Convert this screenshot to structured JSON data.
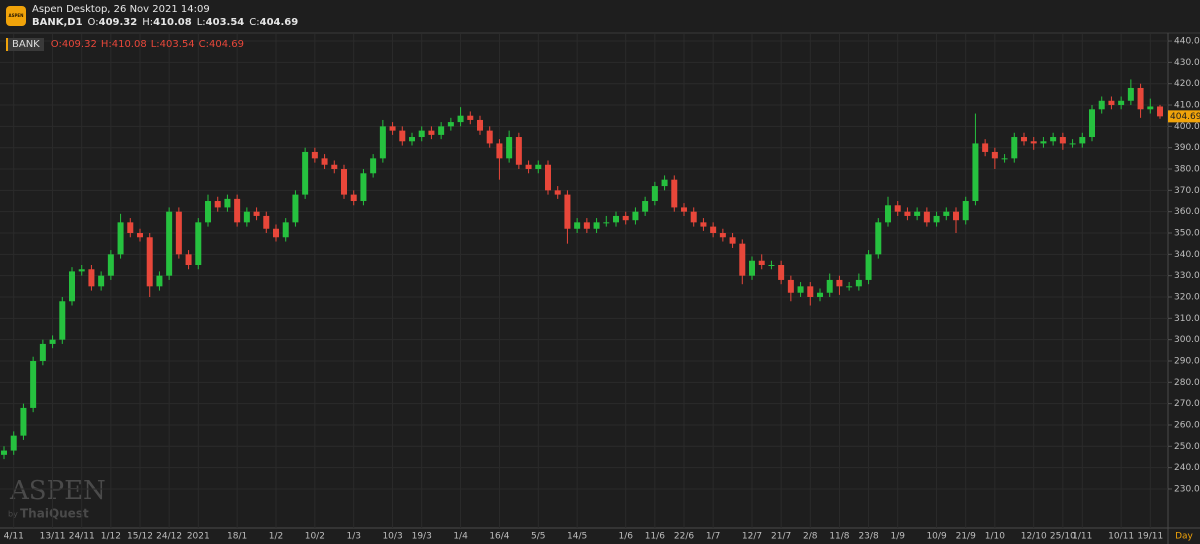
{
  "header": {
    "app_title": "Aspen Desktop, 26 Nov 2021 14:09",
    "symbol_interval": "BANK,D1",
    "ohlc_prefixes": [
      "O:",
      "H:",
      "L:",
      "C:"
    ],
    "logo_text": "ASPEN"
  },
  "watermark": {
    "brand": "ASPEN",
    "by": "by",
    "company": "ThaiQuest"
  },
  "chart_data": {
    "type": "candlestick",
    "symbol": "BANK",
    "x_unit": "Day",
    "up_color": "#26c13f",
    "down_color": "#e8473a",
    "grid": true,
    "categories": [
      null,
      "4/11",
      null,
      null,
      null,
      "13/11",
      null,
      null,
      "24/11",
      null,
      null,
      "1/12",
      null,
      null,
      "15/12",
      null,
      null,
      "24/12",
      null,
      null,
      "2021",
      null,
      null,
      null,
      "18/1",
      null,
      null,
      null,
      "1/2",
      null,
      null,
      null,
      "10/2",
      null,
      null,
      null,
      "1/3",
      null,
      null,
      null,
      "10/3",
      null,
      null,
      "19/3",
      null,
      null,
      null,
      "1/4",
      null,
      null,
      null,
      "16/4",
      null,
      null,
      null,
      "5/5",
      null,
      null,
      null,
      "14/5",
      null,
      null,
      null,
      null,
      "1/6",
      null,
      null,
      "11/6",
      null,
      null,
      "22/6",
      null,
      null,
      "1/7",
      null,
      null,
      null,
      "12/7",
      null,
      null,
      "21/7",
      null,
      null,
      "2/8",
      null,
      null,
      "11/8",
      null,
      null,
      "23/8",
      null,
      null,
      "1/9",
      null,
      null,
      null,
      "10/9",
      null,
      null,
      "21/9",
      null,
      null,
      "1/10",
      null,
      null,
      null,
      "12/10",
      null,
      null,
      "25/10",
      null,
      "1/11",
      null,
      null,
      null,
      "10/11",
      null,
      null,
      "19/11",
      null
    ],
    "open": [
      246,
      248,
      255,
      268,
      290,
      298,
      300,
      318,
      332,
      333,
      325,
      330,
      340,
      355,
      350,
      348,
      325,
      330,
      360,
      340,
      335,
      355,
      365,
      362,
      366,
      355,
      360,
      358,
      352,
      348,
      355,
      368,
      388,
      385,
      382,
      380,
      368,
      365,
      378,
      385,
      400,
      398,
      393,
      395,
      398,
      396,
      400,
      402,
      405,
      403,
      398,
      392,
      385,
      395,
      382,
      380,
      382,
      370,
      368,
      352,
      355,
      352,
      355,
      355,
      358,
      356,
      360,
      365,
      372,
      375,
      362,
      360,
      355,
      353,
      350,
      348,
      345,
      330,
      337,
      335,
      335,
      328,
      322,
      325,
      320,
      322,
      328,
      325,
      325,
      328,
      340,
      355,
      363,
      360,
      358,
      360,
      355,
      358,
      360,
      356,
      365,
      392,
      388,
      385,
      385,
      395,
      393,
      392,
      393,
      395,
      392,
      392,
      395,
      408,
      412,
      410,
      412,
      418,
      408,
      409.32
    ],
    "high": [
      250,
      257,
      270,
      292,
      300,
      302,
      320,
      334,
      335,
      335,
      332,
      342,
      359,
      357,
      352,
      350,
      332,
      362,
      362,
      342,
      357,
      368,
      367,
      368,
      368,
      362,
      362,
      360,
      354,
      357,
      370,
      390,
      390,
      387,
      384,
      382,
      370,
      380,
      387,
      403,
      402,
      400,
      397,
      400,
      400,
      402,
      404,
      409,
      407,
      405,
      400,
      394,
      398,
      397,
      384,
      384,
      384,
      372,
      370,
      357,
      357,
      357,
      358,
      360,
      360,
      362,
      367,
      374,
      377,
      377,
      364,
      362,
      357,
      355,
      352,
      350,
      347,
      339,
      340,
      337,
      337,
      330,
      327,
      327,
      324,
      331,
      330,
      327,
      331,
      342,
      357,
      367,
      365,
      362,
      362,
      362,
      360,
      362,
      362,
      367,
      406,
      394,
      390,
      387,
      397,
      397,
      395,
      395,
      397,
      397,
      394,
      397,
      410,
      414,
      414,
      414,
      422,
      420,
      413,
      410.08
    ],
    "low": [
      244,
      246,
      253,
      266,
      288,
      296,
      298,
      316,
      330,
      323,
      323,
      328,
      338,
      348,
      346,
      320,
      323,
      328,
      338,
      333,
      333,
      353,
      360,
      360,
      353,
      353,
      356,
      350,
      346,
      346,
      353,
      366,
      383,
      380,
      378,
      366,
      363,
      363,
      376,
      383,
      396,
      391,
      391,
      393,
      394,
      394,
      398,
      400,
      401,
      396,
      390,
      375,
      383,
      380,
      378,
      378,
      368,
      366,
      345,
      350,
      350,
      350,
      353,
      353,
      354,
      354,
      358,
      363,
      370,
      360,
      358,
      353,
      351,
      348,
      346,
      343,
      326,
      328,
      333,
      333,
      326,
      318,
      320,
      316,
      318,
      320,
      321,
      323,
      323,
      326,
      338,
      353,
      358,
      356,
      356,
      353,
      353,
      356,
      350,
      354,
      363,
      386,
      380,
      383,
      383,
      391,
      389,
      390,
      391,
      389,
      390,
      390,
      393,
      406,
      408,
      408,
      410,
      404,
      406,
      403.54
    ],
    "close": [
      248,
      255,
      268,
      290,
      298,
      300,
      318,
      332,
      333,
      325,
      330,
      340,
      355,
      350,
      348,
      325,
      330,
      360,
      340,
      335,
      355,
      365,
      362,
      366,
      355,
      360,
      358,
      352,
      348,
      355,
      368,
      388,
      385,
      382,
      380,
      368,
      365,
      378,
      385,
      400,
      398,
      393,
      395,
      398,
      396,
      400,
      402,
      405,
      403,
      398,
      392,
      385,
      395,
      382,
      380,
      382,
      370,
      368,
      352,
      355,
      352,
      355,
      355,
      358,
      356,
      360,
      365,
      372,
      375,
      362,
      360,
      355,
      353,
      350,
      348,
      345,
      330,
      337,
      335,
      335,
      328,
      322,
      325,
      320,
      322,
      328,
      325,
      325,
      328,
      340,
      355,
      363,
      360,
      358,
      360,
      355,
      358,
      360,
      356,
      365,
      392,
      388,
      385,
      385,
      395,
      393,
      392,
      393,
      395,
      392,
      392,
      395,
      408,
      412,
      410,
      412,
      418,
      408,
      409.32,
      404.69
    ],
    "ylim": [
      211.7,
      443.3
    ],
    "yticks": [
      {
        "value": 230,
        "label": "230.00"
      },
      {
        "value": 240,
        "label": "240.00"
      },
      {
        "value": 250,
        "label": "250.00"
      },
      {
        "value": 260,
        "label": "260.00"
      },
      {
        "value": 270,
        "label": "270.00"
      },
      {
        "value": 280,
        "label": "280.00"
      },
      {
        "value": 290,
        "label": "290.00"
      },
      {
        "value": 300,
        "label": "300.00"
      },
      {
        "value": 310,
        "label": "310.00"
      },
      {
        "value": 320,
        "label": "320.00"
      },
      {
        "value": 330,
        "label": "330.00"
      },
      {
        "value": 340,
        "label": "340.00"
      },
      {
        "value": 350,
        "label": "350.00"
      },
      {
        "value": 360,
        "label": "360.00"
      },
      {
        "value": 370,
        "label": "370.00"
      },
      {
        "value": 380,
        "label": "380.00"
      },
      {
        "value": 390,
        "label": "390.00"
      },
      {
        "value": 400,
        "label": "400.00"
      },
      {
        "value": 410,
        "label": "410.00"
      },
      {
        "value": 420,
        "label": "420.00"
      },
      {
        "value": 430,
        "label": "430.00"
      },
      {
        "value": 440,
        "label": "440.00"
      }
    ]
  }
}
